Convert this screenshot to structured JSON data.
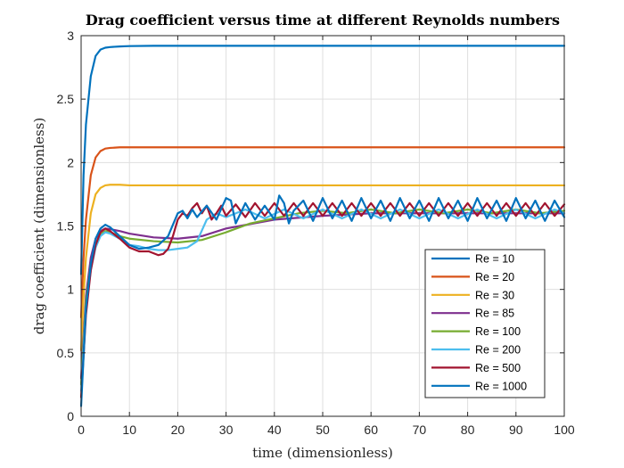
{
  "chart_data": {
    "type": "line",
    "title": "Drag coefficient versus time at different Reynolds numbers",
    "xlabel": "time (dimensionless)",
    "ylabel": "drag coefficient (dimensionless)",
    "xlim": [
      0,
      100
    ],
    "ylim": [
      0,
      3
    ],
    "xticks": [
      0,
      10,
      20,
      30,
      40,
      50,
      60,
      70,
      80,
      90,
      100
    ],
    "yticks": [
      0,
      0.5,
      1,
      1.5,
      2,
      2.5,
      3
    ],
    "xtick_labels": [
      "0",
      "10",
      "20",
      "30",
      "40",
      "50",
      "60",
      "70",
      "80",
      "90",
      "100"
    ],
    "ytick_labels": [
      "0",
      "0.5",
      "1",
      "1.5",
      "2",
      "2.5",
      "3"
    ],
    "grid": true,
    "legend_position": "lower-right",
    "series": [
      {
        "name": "Re = 10",
        "color": "#0072BD",
        "x": [
          0,
          0.5,
          1,
          2,
          3,
          4,
          5,
          6,
          8,
          10,
          15,
          20,
          40,
          60,
          80,
          100
        ],
        "y": [
          1.12,
          1.9,
          2.3,
          2.68,
          2.84,
          2.89,
          2.905,
          2.91,
          2.915,
          2.918,
          2.92,
          2.92,
          2.92,
          2.92,
          2.92,
          2.92
        ]
      },
      {
        "name": "Re = 20",
        "color": "#D95319",
        "x": [
          0,
          0.5,
          1,
          2,
          3,
          4,
          5,
          6,
          8,
          10,
          15,
          20,
          40,
          60,
          80,
          100
        ],
        "y": [
          0.78,
          1.25,
          1.55,
          1.9,
          2.04,
          2.09,
          2.11,
          2.115,
          2.12,
          2.12,
          2.12,
          2.12,
          2.12,
          2.12,
          2.12,
          2.12
        ]
      },
      {
        "name": "Re = 30",
        "color": "#EDB120",
        "x": [
          0,
          0.5,
          1,
          2,
          3,
          4,
          5,
          6,
          8,
          10,
          15,
          20,
          40,
          60,
          80,
          100
        ],
        "y": [
          0.52,
          0.95,
          1.25,
          1.6,
          1.75,
          1.8,
          1.82,
          1.825,
          1.825,
          1.82,
          1.82,
          1.82,
          1.82,
          1.82,
          1.82,
          1.82
        ]
      },
      {
        "name": "Re = 85",
        "color": "#7E2F8E",
        "x": [
          0,
          1,
          2,
          3,
          4,
          5,
          6,
          8,
          10,
          15,
          20,
          25,
          30,
          40,
          50,
          60,
          70,
          80,
          90,
          100
        ],
        "y": [
          0.3,
          0.95,
          1.25,
          1.4,
          1.46,
          1.48,
          1.475,
          1.46,
          1.44,
          1.41,
          1.4,
          1.42,
          1.48,
          1.55,
          1.58,
          1.6,
          1.6,
          1.6,
          1.6,
          1.6
        ]
      },
      {
        "name": "Re = 100",
        "color": "#77AC30",
        "x": [
          0,
          1,
          2,
          3,
          4,
          5,
          6,
          8,
          10,
          15,
          20,
          25,
          30,
          35,
          40,
          45,
          50,
          55,
          60,
          65,
          70,
          75,
          80,
          85,
          90,
          95,
          100
        ],
        "y": [
          0.25,
          0.9,
          1.2,
          1.36,
          1.43,
          1.46,
          1.45,
          1.42,
          1.4,
          1.38,
          1.37,
          1.39,
          1.45,
          1.52,
          1.56,
          1.6,
          1.62,
          1.6,
          1.63,
          1.6,
          1.63,
          1.6,
          1.63,
          1.6,
          1.63,
          1.6,
          1.62
        ]
      },
      {
        "name": "Re = 200",
        "color": "#4DBEEE",
        "x": [
          0,
          1,
          2,
          3,
          4,
          5,
          6,
          8,
          10,
          12,
          14,
          16,
          18,
          20,
          22,
          24,
          26,
          28,
          30,
          34,
          38,
          42,
          46,
          50,
          54,
          58,
          62,
          66,
          70,
          74,
          78,
          82,
          86,
          90,
          94,
          98,
          100
        ],
        "y": [
          0.2,
          0.85,
          1.15,
          1.33,
          1.42,
          1.45,
          1.44,
          1.4,
          1.35,
          1.34,
          1.32,
          1.31,
          1.31,
          1.32,
          1.33,
          1.38,
          1.55,
          1.6,
          1.57,
          1.63,
          1.56,
          1.63,
          1.56,
          1.63,
          1.56,
          1.63,
          1.56,
          1.63,
          1.56,
          1.63,
          1.56,
          1.63,
          1.56,
          1.63,
          1.56,
          1.63,
          1.6
        ]
      },
      {
        "name": "Re = 500",
        "color": "#A2142F",
        "x": [
          0,
          1,
          2,
          3,
          4,
          5,
          6,
          8,
          10,
          12,
          14,
          16,
          17,
          18,
          19,
          20,
          21,
          22,
          23,
          24,
          25,
          26,
          27,
          28,
          29,
          30,
          32,
          34,
          36,
          38,
          40,
          42,
          44,
          46,
          48,
          50,
          52,
          54,
          56,
          58,
          60,
          62,
          64,
          66,
          68,
          70,
          72,
          74,
          76,
          78,
          80,
          82,
          84,
          86,
          88,
          90,
          92,
          94,
          96,
          98,
          100
        ],
        "y": [
          0.15,
          0.8,
          1.15,
          1.35,
          1.45,
          1.48,
          1.46,
          1.4,
          1.33,
          1.3,
          1.3,
          1.27,
          1.28,
          1.32,
          1.42,
          1.55,
          1.6,
          1.58,
          1.64,
          1.68,
          1.6,
          1.66,
          1.55,
          1.6,
          1.66,
          1.58,
          1.67,
          1.57,
          1.68,
          1.58,
          1.68,
          1.58,
          1.68,
          1.58,
          1.68,
          1.58,
          1.68,
          1.58,
          1.68,
          1.58,
          1.68,
          1.58,
          1.68,
          1.58,
          1.68,
          1.58,
          1.68,
          1.58,
          1.68,
          1.58,
          1.68,
          1.58,
          1.68,
          1.58,
          1.68,
          1.58,
          1.68,
          1.58,
          1.68,
          1.58,
          1.67
        ]
      },
      {
        "name": "Re = 1000",
        "color": "#0072BD",
        "x": [
          0,
          1,
          2,
          3,
          4,
          5,
          6,
          8,
          10,
          12,
          14,
          16,
          18,
          20,
          21,
          22,
          23,
          24,
          26,
          28,
          30,
          31,
          32,
          33,
          34,
          36,
          38,
          40,
          41,
          42,
          43,
          44,
          46,
          48,
          50,
          52,
          54,
          56,
          58,
          60,
          62,
          64,
          66,
          68,
          70,
          72,
          74,
          76,
          78,
          80,
          82,
          84,
          86,
          88,
          90,
          92,
          94,
          96,
          98,
          100
        ],
        "y": [
          0.08,
          0.85,
          1.2,
          1.4,
          1.48,
          1.51,
          1.49,
          1.42,
          1.35,
          1.32,
          1.33,
          1.35,
          1.42,
          1.6,
          1.62,
          1.56,
          1.63,
          1.57,
          1.66,
          1.55,
          1.72,
          1.7,
          1.52,
          1.6,
          1.68,
          1.55,
          1.66,
          1.55,
          1.74,
          1.68,
          1.52,
          1.62,
          1.7,
          1.54,
          1.72,
          1.56,
          1.7,
          1.54,
          1.72,
          1.56,
          1.7,
          1.54,
          1.72,
          1.56,
          1.7,
          1.54,
          1.72,
          1.56,
          1.7,
          1.54,
          1.72,
          1.56,
          1.7,
          1.54,
          1.72,
          1.56,
          1.7,
          1.54,
          1.7,
          1.57
        ]
      }
    ]
  }
}
